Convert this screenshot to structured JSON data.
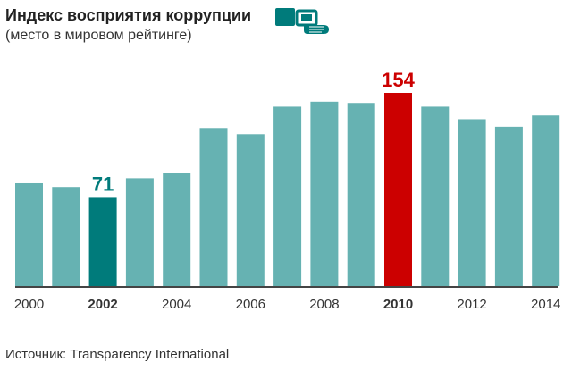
{
  "header": {
    "title": "Индекс восприятия коррупции",
    "subtitle": "(место в мировом рейтинге)",
    "icon": "hand-money-icon"
  },
  "source": "Источник: Transparency International",
  "colors": {
    "bar": "#66b2b2",
    "highlight_2002": "#007b7b",
    "highlight_2010": "#cc0000",
    "axis": "#444444"
  },
  "chart_data": {
    "type": "bar",
    "title": "Индекс восприятия коррупции",
    "subtitle": "(место в мировом рейтинге)",
    "categories": [
      "2000",
      "2001",
      "2002",
      "2003",
      "2004",
      "2005",
      "2006",
      "2007",
      "2008",
      "2009",
      "2010",
      "2011",
      "2012",
      "2013",
      "2014"
    ],
    "tick_labels": [
      "2000",
      "",
      "2002",
      "",
      "2004",
      "",
      "2006",
      "",
      "2008",
      "",
      "2010",
      "",
      "2012",
      "",
      "2014"
    ],
    "bold_ticks": [
      "2002",
      "2010"
    ],
    "values": [
      82,
      79,
      71,
      86,
      90,
      126,
      121,
      143,
      147,
      146,
      154,
      143,
      133,
      127,
      136
    ],
    "data_labels": [
      {
        "category": "2002",
        "label": "71"
      },
      {
        "category": "2010",
        "label": "154"
      }
    ],
    "ylim": [
      0,
      154
    ],
    "grid": false,
    "xlabel": "",
    "ylabel": ""
  }
}
